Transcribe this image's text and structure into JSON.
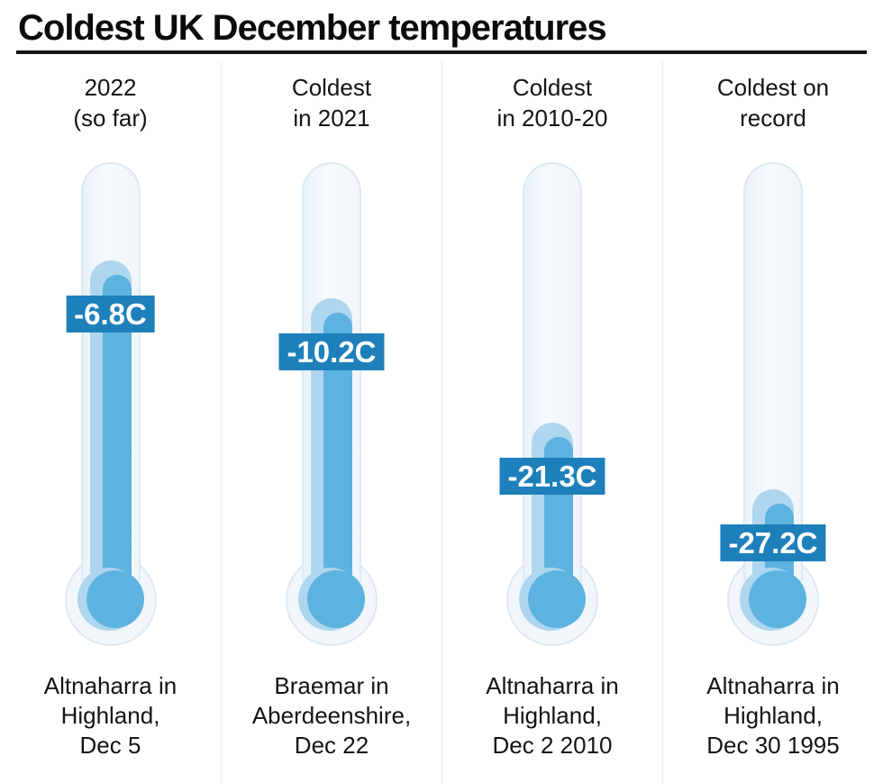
{
  "title": "Coldest UK December temperatures",
  "chart_data": {
    "type": "bar",
    "style": "thermometer-infographic",
    "title": "Coldest UK December temperatures",
    "unit": "C",
    "categories": [
      "2022 (so far)",
      "Coldest in 2021",
      "Coldest in 2010-20",
      "Coldest on record"
    ],
    "values": [
      -6.8,
      -10.2,
      -21.3,
      -27.2
    ],
    "value_labels": [
      "-6.8C",
      "-10.2C",
      "-21.3C",
      "-27.2C"
    ],
    "locations": [
      "Altnaharra in Highland, Dec 5",
      "Braemar in Aberdeenshire, Dec 22",
      "Altnaharra in Highland, Dec 2 2010",
      "Altnaharra in Highland, Dec 30 1995"
    ],
    "legend": "none",
    "grid": "off"
  },
  "columns": [
    {
      "header": [
        "2022",
        "(so far)"
      ],
      "temperature": -6.8,
      "value_label": "-6.8C",
      "location": [
        "Altnaharra in",
        "Highland,",
        "Dec 5"
      ]
    },
    {
      "header": [
        "Coldest",
        "in 2021"
      ],
      "temperature": -10.2,
      "value_label": "-10.2C",
      "location": [
        "Braemar in",
        "Aberdeenshire,",
        "Dec 22"
      ]
    },
    {
      "header": [
        "Coldest",
        "in 2010-20"
      ],
      "temperature": -21.3,
      "value_label": "-21.3C",
      "location": [
        "Altnaharra in",
        "Highland,",
        "Dec 2 2010"
      ]
    },
    {
      "header": [
        "Coldest on",
        "record"
      ],
      "temperature": -27.2,
      "value_label": "-27.2C",
      "location": [
        "Altnaharra in",
        "Highland,",
        "Dec 30 1995"
      ]
    }
  ],
  "colors": {
    "badge_blue": "#1e80ba",
    "mercury_dark": "#5db3e0",
    "mercury_light": "#aed6ee",
    "tube_fill": "#f1f6fb",
    "tube_border": "#dee9f3",
    "divider": "#e9e9e9",
    "rule": "#161616",
    "text": "#141414"
  }
}
